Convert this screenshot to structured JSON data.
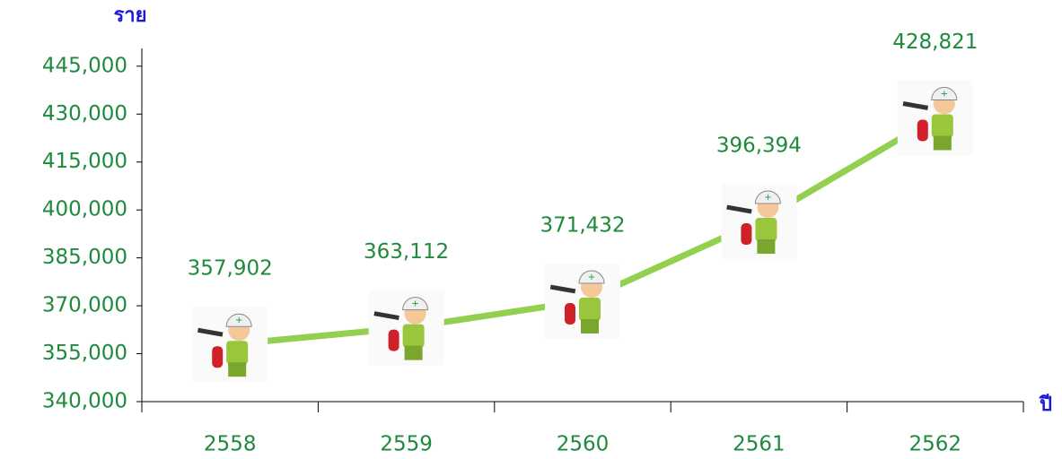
{
  "chart_data": {
    "type": "line",
    "y_label": "ราย",
    "x_label": "ปี",
    "categories": [
      "2558",
      "2559",
      "2560",
      "2561",
      "2562"
    ],
    "values": [
      357902,
      363112,
      371432,
      396394,
      428821
    ],
    "value_labels": [
      "357,902",
      "363,112",
      "371,432",
      "396,394",
      "428,821"
    ],
    "color": "#92d050",
    "ylim": [
      340000,
      450000
    ],
    "yticks": [
      {
        "value": 340000,
        "label": "340,000"
      },
      {
        "value": 355000,
        "label": "355,000"
      },
      {
        "value": 370000,
        "label": "370,000"
      },
      {
        "value": 385000,
        "label": "385,000"
      },
      {
        "value": 400000,
        "label": "400,000"
      },
      {
        "value": 415000,
        "label": "415,000"
      },
      {
        "value": 430000,
        "label": "430,000"
      },
      {
        "value": 445000,
        "label": "445,000"
      }
    ]
  }
}
